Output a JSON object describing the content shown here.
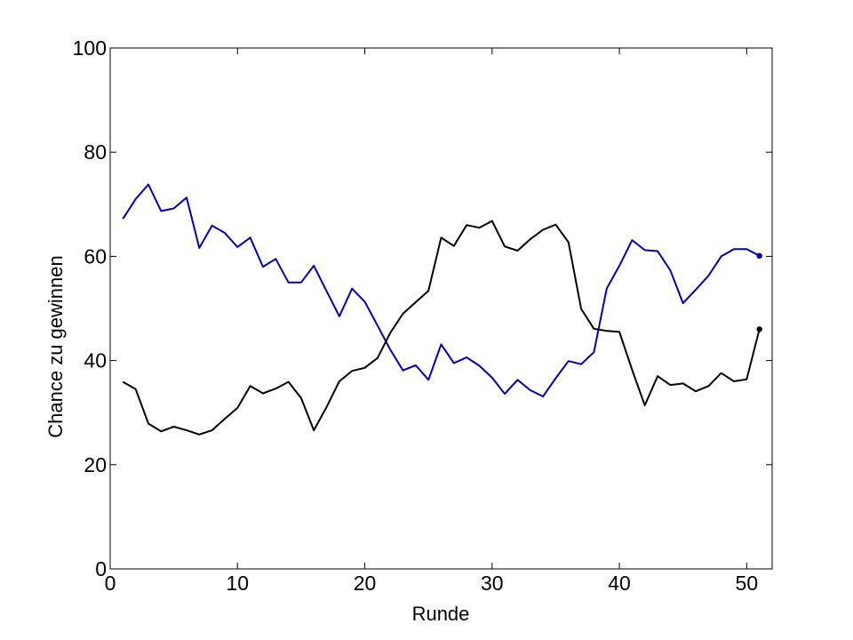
{
  "chart_data": {
    "type": "line",
    "title": "",
    "xlabel": "Runde",
    "ylabel": "Chance zu gewinnen",
    "xlim": [
      0,
      52
    ],
    "ylim": [
      0,
      100
    ],
    "xticks": [
      0,
      10,
      20,
      30,
      40,
      50
    ],
    "yticks": [
      0,
      20,
      40,
      60,
      80,
      100
    ],
    "grid": false,
    "x": [
      1,
      2,
      3,
      4,
      5,
      6,
      7,
      8,
      9,
      10,
      11,
      12,
      13,
      14,
      15,
      16,
      17,
      18,
      19,
      20,
      21,
      22,
      23,
      24,
      25,
      26,
      27,
      28,
      29,
      30,
      31,
      32,
      33,
      34,
      35,
      36,
      37,
      38,
      39,
      40,
      41,
      42,
      43,
      44,
      45,
      46,
      47,
      48,
      49,
      50,
      51
    ],
    "series": [
      {
        "color": "#0000b0",
        "values": [
          67.2,
          71,
          73.8,
          68.7,
          69.2,
          71.3,
          61.6,
          65.9,
          64.5,
          61.8,
          63.6,
          58,
          59.5,
          55,
          55,
          58.2,
          53.3,
          48.5,
          53.8,
          51.3,
          46.7,
          42.1,
          38.1,
          39.1,
          36.3,
          43.1,
          39.5,
          40.6,
          39,
          36.7,
          33.6,
          36.3,
          34.3,
          33.1,
          36.6,
          39.9,
          39.3,
          41.6,
          53.8,
          58.2,
          63.1,
          61.2,
          61,
          57.3,
          51,
          53.6,
          56.3,
          60,
          61.4,
          61.4,
          60.1
        ],
        "end_marker": true
      },
      {
        "color": "#000000",
        "values": [
          35.9,
          34.5,
          27.9,
          26.4,
          27.3,
          26.6,
          25.8,
          26.6,
          28.8,
          30.9,
          35.1,
          33.7,
          34.6,
          35.9,
          32.8,
          26.6,
          31.1,
          36,
          38,
          38.6,
          40.5,
          45.3,
          49,
          51.2,
          53.4,
          63.6,
          62,
          66,
          65.5,
          66.8,
          61.9,
          61.1,
          63.3,
          65.1,
          66.1,
          62.7,
          49.9,
          46.1,
          45.7,
          45.5,
          38.2,
          31.4,
          37,
          35.3,
          35.6,
          34.1,
          35.1,
          37.6,
          36,
          36.4,
          46
        ]
      }
    ]
  }
}
